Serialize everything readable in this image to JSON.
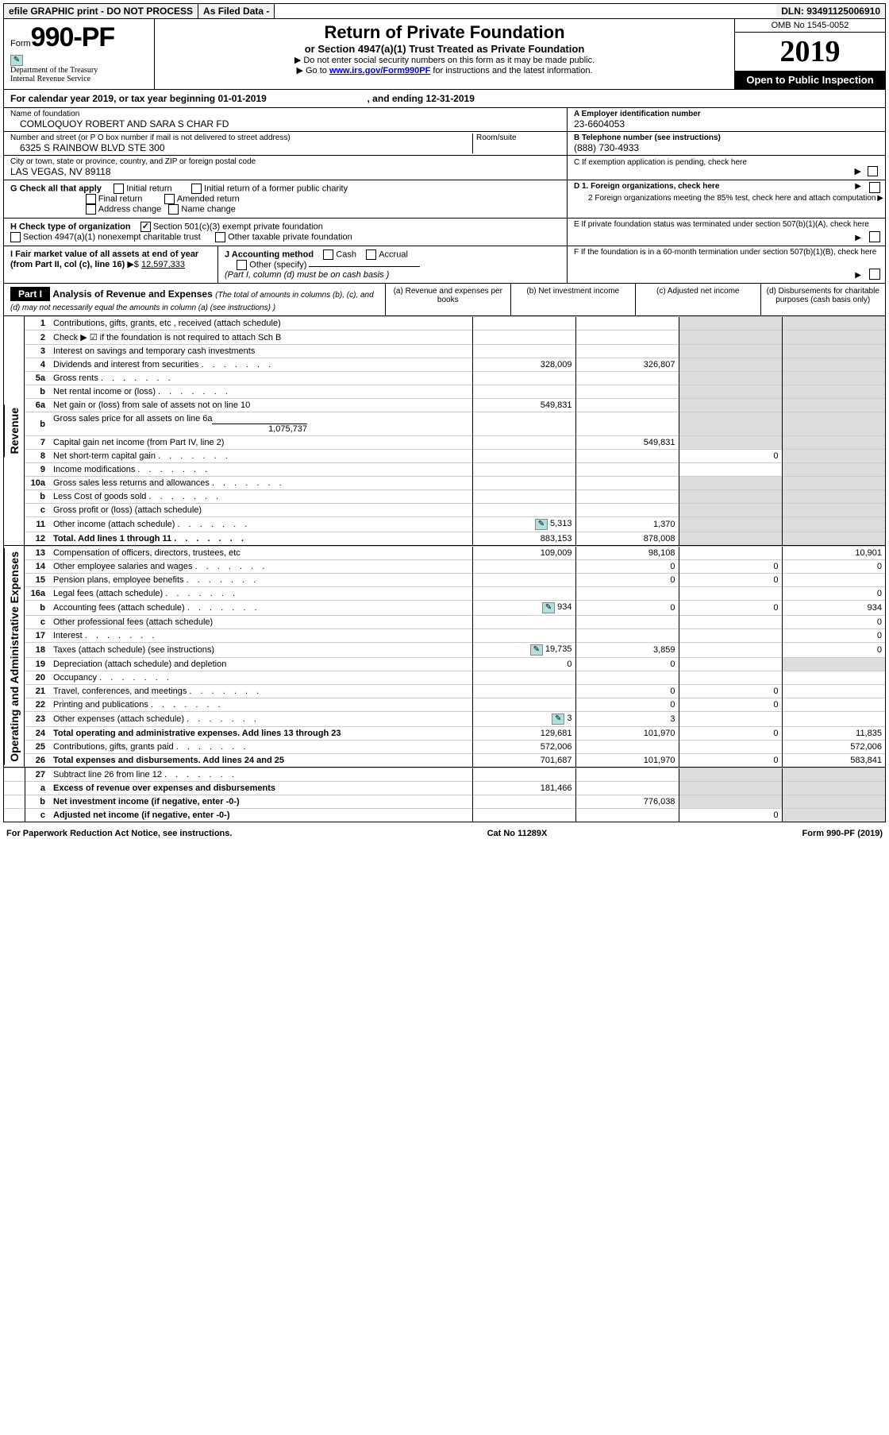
{
  "top": {
    "efile": "efile GRAPHIC print - DO NOT PROCESS",
    "asFiled": "As Filed Data -",
    "dln": "DLN: 93491125006910"
  },
  "header": {
    "formWord": "Form",
    "formNum": "990-PF",
    "dept1": "Department of the Treasury",
    "dept2": "Internal Revenue Service",
    "title": "Return of Private Foundation",
    "sub": "or Section 4947(a)(1) Trust Treated as Private Foundation",
    "instr1": "▶ Do not enter social security numbers on this form as it may be made public.",
    "instr2": "▶ Go to",
    "instrLink": "www.irs.gov/Form990PF",
    "instr3": "for instructions and the latest information.",
    "omb": "OMB No 1545-0052",
    "year": "2019",
    "openInsp": "Open to Public Inspection"
  },
  "calYear": {
    "text1": "For calendar year 2019, or tax year beginning 01-01-2019",
    "text2": ", and ending 12-31-2019"
  },
  "ident": {
    "nameLbl": "Name of foundation",
    "nameVal": "COMLOQUOY ROBERT AND SARA S CHAR FD",
    "addrLbl": "Number and street (or P O  box number if mail is not delivered to street address)",
    "roomLbl": "Room/suite",
    "addrVal": "6325 S RAINBOW BLVD STE 300",
    "cityLbl": "City or town, state or province, country, and ZIP or foreign postal code",
    "cityVal": "LAS VEGAS, NV  89118",
    "einLbl": "A Employer identification number",
    "einVal": "23-6604053",
    "telLbl": "B Telephone number (see instructions)",
    "telVal": "(888) 730-4933",
    "cLbl": "C If exemption application is pending, check here"
  },
  "boxG": {
    "lbl": "G Check all that apply",
    "o1": "Initial return",
    "o2": "Initial return of a former public charity",
    "o3": "Final return",
    "o4": "Amended return",
    "o5": "Address change",
    "o6": "Name change"
  },
  "boxH": {
    "lbl": "H Check type of organization",
    "o1": "Section 501(c)(3) exempt private foundation",
    "o2": "Section 4947(a)(1) nonexempt charitable trust",
    "o3": "Other taxable private foundation"
  },
  "boxI": {
    "lbl": "I Fair market value of all assets at end of year (from Part II, col  (c), line 16)",
    "arrow": "▶$",
    "val": "12,597,333"
  },
  "boxJ": {
    "lbl": "J Accounting method",
    "o1": "Cash",
    "o2": "Accrual",
    "o3": "Other (specify)",
    "note": "(Part I, column (d) must be on cash basis )"
  },
  "boxD": {
    "d1": "D 1. Foreign organizations, check here",
    "d2": "2 Foreign organizations meeting the 85% test, check here and attach computation",
    "e": "E  If private foundation status was terminated under section 507(b)(1)(A), check here",
    "f": "F  If the foundation is in a 60-month termination under section 507(b)(1)(B), check here"
  },
  "part1": {
    "label": "Part I",
    "title": "Analysis of Revenue and Expenses",
    "titleNote": "(The total of amounts in columns (b), (c), and (d) may not necessarily equal the amounts in column (a) (see instructions) )",
    "colA": "(a)  Revenue and expenses per books",
    "colB": "(b)  Net investment income",
    "colC": "(c)  Adjusted net income",
    "colD": "(d)  Disbursements for charitable purposes (cash basis only)"
  },
  "sideRev": "Revenue",
  "sideExp": "Operating and Administrative Expenses",
  "rows": {
    "r1": {
      "n": "1",
      "d": "Contributions, gifts, grants, etc , received (attach schedule)"
    },
    "r2": {
      "n": "2",
      "d": "Check ▶ ☑ if the foundation is not required to attach Sch  B"
    },
    "r3": {
      "n": "3",
      "d": "Interest on savings and temporary cash investments"
    },
    "r4": {
      "n": "4",
      "d": "Dividends and interest from securities",
      "a": "328,009",
      "b": "326,807"
    },
    "r5a": {
      "n": "5a",
      "d": "Gross rents"
    },
    "r5b": {
      "n": "b",
      "d": "Net rental income or (loss)"
    },
    "r6a": {
      "n": "6a",
      "d": "Net gain or (loss) from sale of assets not on line 10",
      "a": "549,831"
    },
    "r6b": {
      "n": "b",
      "d": "Gross sales price for all assets on line 6a",
      "sub": "1,075,737"
    },
    "r7": {
      "n": "7",
      "d": "Capital gain net income (from Part IV, line 2)",
      "b": "549,831"
    },
    "r8": {
      "n": "8",
      "d": "Net short-term capital gain",
      "c": "0"
    },
    "r9": {
      "n": "9",
      "d": "Income modifications"
    },
    "r10a": {
      "n": "10a",
      "d": "Gross sales less returns and allowances"
    },
    "r10b": {
      "n": "b",
      "d": "Less  Cost of goods sold"
    },
    "r10c": {
      "n": "c",
      "d": "Gross profit or (loss) (attach schedule)"
    },
    "r11": {
      "n": "11",
      "d": "Other income (attach schedule)",
      "a": "5,313",
      "b": "1,370",
      "att": true
    },
    "r12": {
      "n": "12",
      "d": "Total. Add lines 1 through 11",
      "a": "883,153",
      "b": "878,008",
      "bold": true
    },
    "r13": {
      "n": "13",
      "d": "Compensation of officers, directors, trustees, etc",
      "a": "109,009",
      "b": "98,108",
      "dd": "10,901"
    },
    "r14": {
      "n": "14",
      "d": "Other employee salaries and wages",
      "b": "0",
      "c": "0",
      "dd": "0"
    },
    "r15": {
      "n": "15",
      "d": "Pension plans, employee benefits",
      "b": "0",
      "c": "0"
    },
    "r16a": {
      "n": "16a",
      "d": "Legal fees (attach schedule)",
      "dd": "0"
    },
    "r16b": {
      "n": "b",
      "d": "Accounting fees (attach schedule)",
      "a": "934",
      "b": "0",
      "c": "0",
      "dd": "934",
      "att": true
    },
    "r16c": {
      "n": "c",
      "d": "Other professional fees (attach schedule)",
      "dd": "0"
    },
    "r17": {
      "n": "17",
      "d": "Interest",
      "dd": "0"
    },
    "r18": {
      "n": "18",
      "d": "Taxes (attach schedule) (see instructions)",
      "a": "19,735",
      "b": "3,859",
      "dd": "0",
      "att": true
    },
    "r19": {
      "n": "19",
      "d": "Depreciation (attach schedule) and depletion",
      "a": "0",
      "b": "0"
    },
    "r20": {
      "n": "20",
      "d": "Occupancy"
    },
    "r21": {
      "n": "21",
      "d": "Travel, conferences, and meetings",
      "b": "0",
      "c": "0"
    },
    "r22": {
      "n": "22",
      "d": "Printing and publications",
      "b": "0",
      "c": "0"
    },
    "r23": {
      "n": "23",
      "d": "Other expenses (attach schedule)",
      "a": "3",
      "b": "3",
      "att": true
    },
    "r24": {
      "n": "24",
      "d": "Total operating and administrative expenses. Add lines 13 through 23",
      "a": "129,681",
      "b": "101,970",
      "c": "0",
      "dd": "11,835",
      "bold": true
    },
    "r25": {
      "n": "25",
      "d": "Contributions, gifts, grants paid",
      "a": "572,006",
      "dd": "572,006"
    },
    "r26": {
      "n": "26",
      "d": "Total expenses and disbursements. Add lines 24 and 25",
      "a": "701,687",
      "b": "101,970",
      "c": "0",
      "dd": "583,841",
      "bold": true
    },
    "r27": {
      "n": "27",
      "d": "Subtract line 26 from line 12"
    },
    "r27a": {
      "n": "a",
      "d": "Excess of revenue over expenses and disbursements",
      "a": "181,466",
      "bold": true
    },
    "r27b": {
      "n": "b",
      "d": "Net investment income (if negative, enter -0-)",
      "b": "776,038",
      "bold": true
    },
    "r27c": {
      "n": "c",
      "d": "Adjusted net income (if negative, enter -0-)",
      "c": "0",
      "bold": true
    }
  },
  "footer": {
    "left": "For Paperwork Reduction Act Notice, see instructions.",
    "mid": "Cat  No  11289X",
    "right": "Form 990-PF (2019)"
  }
}
